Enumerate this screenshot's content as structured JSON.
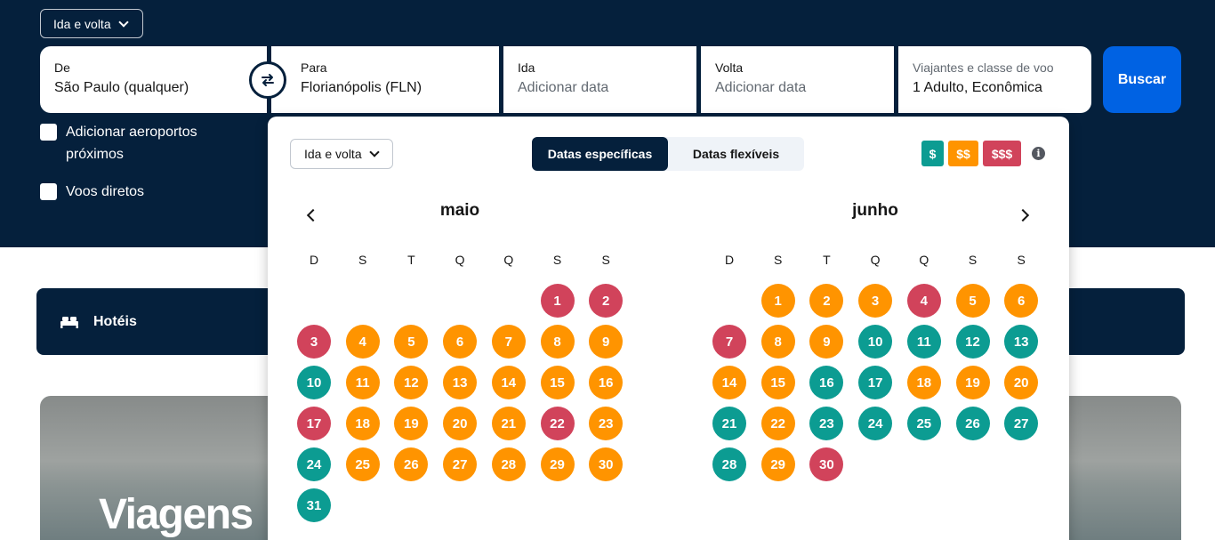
{
  "colors": {
    "navy": "#05203c",
    "blue": "#0062e3",
    "cheap": "#0c9c92",
    "mid": "#ff9400",
    "high": "#d1435b"
  },
  "header": {
    "trip_type": "Ida e volta",
    "from": {
      "label": "De",
      "value": "São Paulo (qualquer)"
    },
    "to": {
      "label": "Para",
      "value": "Florianópolis (FLN)"
    },
    "depart": {
      "label": "Ida",
      "placeholder": "Adicionar data"
    },
    "return": {
      "label": "Volta",
      "placeholder": "Adicionar data"
    },
    "travelers": {
      "label": "Viajantes e classe de voo",
      "value": "1 Adulto, Econômica"
    },
    "search_label": "Buscar",
    "options": {
      "nearby_airports": "Adicionar aeroportos próximos",
      "direct_flights": "Voos diretos"
    }
  },
  "hotels": {
    "label": "Hotéis",
    "icon": "bed-icon"
  },
  "hero": {
    "title": "Viagens"
  },
  "datepicker": {
    "trip_type": "Ida e volta",
    "tabs": [
      {
        "label": "Datas específicas",
        "active": true
      },
      {
        "label": "Datas flexíveis",
        "active": false
      }
    ],
    "legend": [
      {
        "label": "$",
        "level": "cheap"
      },
      {
        "label": "$$",
        "level": "mid"
      },
      {
        "label": "$$$",
        "level": "high"
      }
    ],
    "weekdays": [
      "D",
      "S",
      "T",
      "Q",
      "Q",
      "S",
      "S"
    ],
    "months": [
      {
        "name": "maio",
        "first_weekday": 5,
        "levels": [
          "high",
          "high",
          "high",
          "mid",
          "mid",
          "mid",
          "mid",
          "mid",
          "mid",
          "cheap",
          "mid",
          "mid",
          "mid",
          "mid",
          "mid",
          "mid",
          "high",
          "mid",
          "mid",
          "mid",
          "mid",
          "high",
          "mid",
          "cheap",
          "mid",
          "mid",
          "mid",
          "mid",
          "mid",
          "mid",
          "cheap"
        ]
      },
      {
        "name": "junho",
        "first_weekday": 1,
        "levels": [
          "mid",
          "mid",
          "mid",
          "high",
          "mid",
          "mid",
          "high",
          "mid",
          "mid",
          "cheap",
          "cheap",
          "cheap",
          "cheap",
          "mid",
          "mid",
          "cheap",
          "cheap",
          "mid",
          "mid",
          "mid",
          "cheap",
          "mid",
          "cheap",
          "cheap",
          "cheap",
          "cheap",
          "cheap",
          "cheap",
          "mid",
          "high"
        ]
      }
    ]
  }
}
